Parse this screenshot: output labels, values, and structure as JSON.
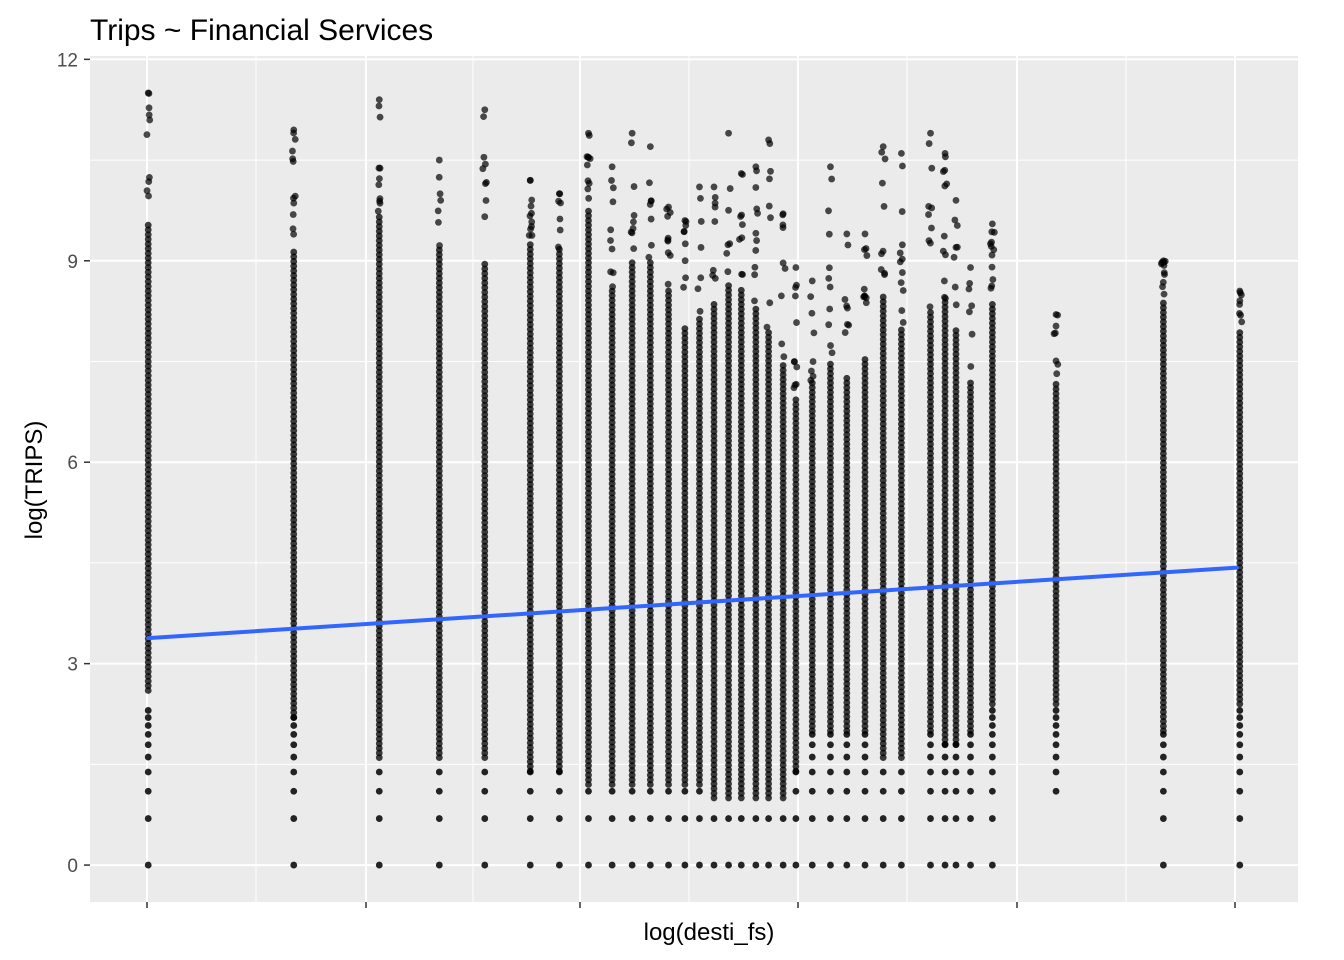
{
  "chart_data": {
    "type": "scatter",
    "title": "Trips ~ Financial Services",
    "xlabel": "log(desti_fs)",
    "ylabel": "log(TRIPS)",
    "x_tick_labels": [
      "",
      "",
      "",
      "",
      "",
      ""
    ],
    "ylim": [
      -0.55,
      12.05
    ],
    "y_ticks": [
      0,
      3,
      6,
      9,
      12
    ],
    "y_tick_labels": [
      "0",
      "3",
      "6",
      "9",
      "12"
    ],
    "grid": true,
    "panel_background": "#ebebeb",
    "grid_color": "#ffffff",
    "point_color": "#000000",
    "fit_line_color": "#3366ff",
    "fit_line": {
      "x": [
        0,
        29.92
      ],
      "y": [
        3.38,
        4.43
      ]
    },
    "point_columns": [
      {
        "x": 0.0,
        "ymin": 0.0,
        "ymax": 11.5,
        "n": 220,
        "dense_lo": 2.6,
        "dense_hi": 9.6
      },
      {
        "x": 4.0,
        "ymin": 0.0,
        "ymax": 10.95,
        "n": 150,
        "dense_lo": 2.2,
        "dense_hi": 9.2
      },
      {
        "x": 6.35,
        "ymin": 0.0,
        "ymax": 11.4,
        "n": 160,
        "dense_lo": 1.6,
        "dense_hi": 9.7
      },
      {
        "x": 8.0,
        "ymin": 0.0,
        "ymax": 10.5,
        "n": 140,
        "dense_lo": 1.6,
        "dense_hi": 9.2
      },
      {
        "x": 9.25,
        "ymin": 0.0,
        "ymax": 11.25,
        "n": 150,
        "dense_lo": 1.6,
        "dense_hi": 9.0
      },
      {
        "x": 10.5,
        "ymin": 0.0,
        "ymax": 10.2,
        "n": 150,
        "dense_lo": 1.4,
        "dense_hi": 9.3
      },
      {
        "x": 11.3,
        "ymin": 0.0,
        "ymax": 10.0,
        "n": 140,
        "dense_lo": 1.4,
        "dense_hi": 9.2
      },
      {
        "x": 12.1,
        "ymin": 0.0,
        "ymax": 10.9,
        "n": 160,
        "dense_lo": 1.2,
        "dense_hi": 9.8
      },
      {
        "x": 12.75,
        "ymin": 0.0,
        "ymax": 10.4,
        "n": 130,
        "dense_lo": 1.2,
        "dense_hi": 8.6
      },
      {
        "x": 13.3,
        "ymin": 0.0,
        "ymax": 10.9,
        "n": 140,
        "dense_lo": 1.2,
        "dense_hi": 9.0
      },
      {
        "x": 13.8,
        "ymin": 0.0,
        "ymax": 10.7,
        "n": 130,
        "dense_lo": 1.2,
        "dense_hi": 9.0
      },
      {
        "x": 14.3,
        "ymin": 0.0,
        "ymax": 9.8,
        "n": 120,
        "dense_lo": 1.2,
        "dense_hi": 8.6
      },
      {
        "x": 14.75,
        "ymin": 0.0,
        "ymax": 9.6,
        "n": 110,
        "dense_lo": 1.2,
        "dense_hi": 8.0
      },
      {
        "x": 15.15,
        "ymin": 0.0,
        "ymax": 10.1,
        "n": 120,
        "dense_lo": 1.2,
        "dense_hi": 8.2
      },
      {
        "x": 15.55,
        "ymin": 0.0,
        "ymax": 10.1,
        "n": 120,
        "dense_lo": 1.0,
        "dense_hi": 8.4
      },
      {
        "x": 15.95,
        "ymin": 0.0,
        "ymax": 10.9,
        "n": 130,
        "dense_lo": 1.0,
        "dense_hi": 8.7
      },
      {
        "x": 16.3,
        "ymin": 0.0,
        "ymax": 10.3,
        "n": 120,
        "dense_lo": 1.0,
        "dense_hi": 8.6
      },
      {
        "x": 16.7,
        "ymin": 0.0,
        "ymax": 10.4,
        "n": 120,
        "dense_lo": 1.0,
        "dense_hi": 8.3
      },
      {
        "x": 17.05,
        "ymin": 0.0,
        "ymax": 10.8,
        "n": 110,
        "dense_lo": 1.0,
        "dense_hi": 8.0
      },
      {
        "x": 17.45,
        "ymin": 0.0,
        "ymax": 9.7,
        "n": 100,
        "dense_lo": 1.0,
        "dense_hi": 7.5
      },
      {
        "x": 17.8,
        "ymin": 0.0,
        "ymax": 8.9,
        "n": 100,
        "dense_lo": 1.4,
        "dense_hi": 7.0
      },
      {
        "x": 18.25,
        "ymin": 0.0,
        "ymax": 8.7,
        "n": 120,
        "dense_lo": 2.0,
        "dense_hi": 7.2
      },
      {
        "x": 18.75,
        "ymin": 0.0,
        "ymax": 10.4,
        "n": 130,
        "dense_lo": 2.0,
        "dense_hi": 7.5
      },
      {
        "x": 19.2,
        "ymin": 0.0,
        "ymax": 9.4,
        "n": 120,
        "dense_lo": 2.0,
        "dense_hi": 7.3
      },
      {
        "x": 19.7,
        "ymin": 0.0,
        "ymax": 9.4,
        "n": 120,
        "dense_lo": 2.0,
        "dense_hi": 7.6
      },
      {
        "x": 20.2,
        "ymin": 0.0,
        "ymax": 10.7,
        "n": 140,
        "dense_lo": 1.6,
        "dense_hi": 8.5
      },
      {
        "x": 20.7,
        "ymin": 0.0,
        "ymax": 10.6,
        "n": 130,
        "dense_lo": 1.6,
        "dense_hi": 8.0
      },
      {
        "x": 21.5,
        "ymin": 0.0,
        "ymax": 10.9,
        "n": 170,
        "dense_lo": 2.0,
        "dense_hi": 8.3
      },
      {
        "x": 21.9,
        "ymin": 0.0,
        "ymax": 10.6,
        "n": 170,
        "dense_lo": 1.8,
        "dense_hi": 8.4
      },
      {
        "x": 22.2,
        "ymin": 0.0,
        "ymax": 9.9,
        "n": 150,
        "dense_lo": 1.8,
        "dense_hi": 8.0
      },
      {
        "x": 22.6,
        "ymin": 0.0,
        "ymax": 8.9,
        "n": 130,
        "dense_lo": 2.0,
        "dense_hi": 7.2
      },
      {
        "x": 23.2,
        "ymin": 0.0,
        "ymax": 9.55,
        "n": 130,
        "dense_lo": 2.4,
        "dense_hi": 8.4
      },
      {
        "x": 24.95,
        "ymin": 0.7,
        "ymax": 8.2,
        "n": 110,
        "dense_lo": 2.4,
        "dense_hi": 7.2
      },
      {
        "x": 27.9,
        "ymin": 0.0,
        "ymax": 9.0,
        "n": 120,
        "dense_lo": 2.0,
        "dense_hi": 8.4
      },
      {
        "x": 30.0,
        "ymin": 0.0,
        "ymax": 8.55,
        "n": 130,
        "dense_lo": 2.4,
        "dense_hi": 8.0
      }
    ]
  }
}
